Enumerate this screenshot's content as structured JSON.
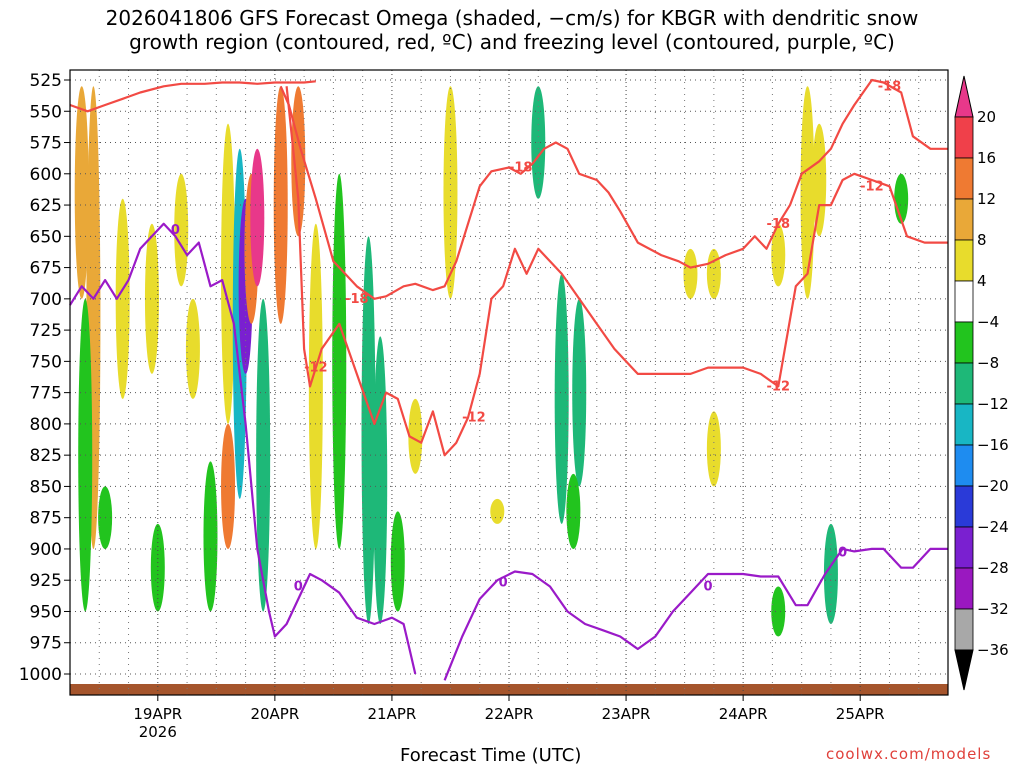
{
  "header": {
    "title": "2026041806 GFS Forecast Omega (shaded, −cm/s) for KBGR with dendritic snow\ngrowth region (contoured, red, ºC) and freezing level (contoured, purple, ºC)"
  },
  "footer": {
    "xaxis_label": "Forecast Time (UTC)",
    "credit": "coolwx.com/models"
  },
  "chart_data": {
    "type": "heatmap",
    "title": "2026041806 GFS Forecast Omega (shaded, −cm/s) for KBGR with dendritic snow growth region (contoured, red, ºC) and freezing level (contoured, purple, ºC)",
    "xlabel": "Forecast Time (UTC)",
    "ylabel": "",
    "y_axis": {
      "inverted": true,
      "range": [
        1000,
        525
      ],
      "ticks": [
        525,
        550,
        575,
        600,
        625,
        650,
        675,
        700,
        725,
        750,
        775,
        800,
        825,
        850,
        875,
        900,
        925,
        950,
        975,
        1000
      ]
    },
    "x_axis": {
      "range_days": [
        18.25,
        25.75
      ],
      "ticks": [
        {
          "day": 19,
          "label": "19APR",
          "sublabel": "2026"
        },
        {
          "day": 20,
          "label": "20APR",
          "sublabel": ""
        },
        {
          "day": 21,
          "label": "21APR",
          "sublabel": ""
        },
        {
          "day": 22,
          "label": "22APR",
          "sublabel": ""
        },
        {
          "day": 23,
          "label": "23APR",
          "sublabel": ""
        },
        {
          "day": 24,
          "label": "24APR",
          "sublabel": ""
        },
        {
          "day": 25,
          "label": "25APR",
          "sublabel": ""
        }
      ]
    },
    "grid": true,
    "colorbar": {
      "labels": [
        "20",
        "16",
        "12",
        "8",
        "4",
        "−4",
        "−8",
        "−12",
        "−16",
        "−20",
        "−24",
        "−28",
        "−32",
        "−36"
      ],
      "colors": [
        "#e8388a",
        "#f0404a",
        "#ef7a32",
        "#e9a838",
        "#e8dc2c",
        "#ffffff",
        "#22c41e",
        "#1eb878",
        "#18b6c4",
        "#1e8cf0",
        "#2a3ad8",
        "#7a20d0",
        "#9a18c0",
        "#a8a8a8",
        "#000000"
      ]
    },
    "omega_shading": [
      {
        "t": 18.35,
        "p1": 530,
        "p2": 700,
        "value": 10
      },
      {
        "t": 18.45,
        "p1": 530,
        "p2": 900,
        "value": 10
      },
      {
        "t": 18.38,
        "p1": 700,
        "p2": 950,
        "value": -6
      },
      {
        "t": 18.55,
        "p1": 850,
        "p2": 900,
        "value": -6
      },
      {
        "t": 18.7,
        "p1": 620,
        "p2": 780,
        "value": 4
      },
      {
        "t": 18.95,
        "p1": 640,
        "p2": 760,
        "value": 4
      },
      {
        "t": 19.0,
        "p1": 880,
        "p2": 950,
        "value": -6
      },
      {
        "t": 19.2,
        "p1": 600,
        "p2": 690,
        "value": 4
      },
      {
        "t": 19.3,
        "p1": 700,
        "p2": 780,
        "value": 4
      },
      {
        "t": 19.45,
        "p1": 830,
        "p2": 950,
        "value": -6
      },
      {
        "t": 19.6,
        "p1": 560,
        "p2": 800,
        "value": 6
      },
      {
        "t": 19.6,
        "p1": 800,
        "p2": 900,
        "value": 12
      },
      {
        "t": 19.7,
        "p1": 580,
        "p2": 860,
        "value": -12
      },
      {
        "t": 19.75,
        "p1": 620,
        "p2": 760,
        "value": -24
      },
      {
        "t": 19.8,
        "p1": 600,
        "p2": 720,
        "value": 12
      },
      {
        "t": 19.85,
        "p1": 580,
        "p2": 690,
        "value": 20
      },
      {
        "t": 19.9,
        "p1": 700,
        "p2": 950,
        "value": -8
      },
      {
        "t": 20.05,
        "p1": 530,
        "p2": 720,
        "value": 12
      },
      {
        "t": 20.2,
        "p1": 530,
        "p2": 650,
        "value": 12
      },
      {
        "t": 20.35,
        "p1": 640,
        "p2": 900,
        "value": 4
      },
      {
        "t": 20.55,
        "p1": 600,
        "p2": 900,
        "value": -6
      },
      {
        "t": 20.8,
        "p1": 650,
        "p2": 960,
        "value": -8
      },
      {
        "t": 20.9,
        "p1": 730,
        "p2": 960,
        "value": -10
      },
      {
        "t": 21.05,
        "p1": 870,
        "p2": 950,
        "value": -6
      },
      {
        "t": 21.2,
        "p1": 780,
        "p2": 840,
        "value": 4
      },
      {
        "t": 21.5,
        "p1": 530,
        "p2": 700,
        "value": 4
      },
      {
        "t": 21.9,
        "p1": 860,
        "p2": 880,
        "value": 4
      },
      {
        "t": 22.25,
        "p1": 530,
        "p2": 620,
        "value": -8
      },
      {
        "t": 22.45,
        "p1": 680,
        "p2": 880,
        "value": -10
      },
      {
        "t": 22.6,
        "p1": 700,
        "p2": 850,
        "value": -8
      },
      {
        "t": 22.55,
        "p1": 840,
        "p2": 900,
        "value": -6
      },
      {
        "t": 23.55,
        "p1": 660,
        "p2": 700,
        "value": 4
      },
      {
        "t": 23.75,
        "p1": 660,
        "p2": 700,
        "value": 4
      },
      {
        "t": 23.75,
        "p1": 790,
        "p2": 850,
        "value": 4
      },
      {
        "t": 24.3,
        "p1": 640,
        "p2": 690,
        "value": 4
      },
      {
        "t": 24.3,
        "p1": 930,
        "p2": 970,
        "value": -6
      },
      {
        "t": 24.55,
        "p1": 530,
        "p2": 700,
        "value": 4
      },
      {
        "t": 24.65,
        "p1": 560,
        "p2": 650,
        "value": 4
      },
      {
        "t": 24.75,
        "p1": 880,
        "p2": 960,
        "value": -8
      },
      {
        "t": 25.35,
        "p1": 600,
        "p2": 640,
        "value": -6
      }
    ],
    "series": [
      {
        "name": "-18",
        "color": "#f24a44",
        "segments": [
          {
            "t": [
              18.25,
              18.4,
              18.55,
              18.7,
              18.85,
              19.05,
              19.2,
              19.4,
              19.55,
              19.7,
              19.85,
              20.0,
              20.1,
              20.25,
              20.35
            ],
            "p": [
              545,
              550,
              545,
              540,
              535,
              530,
              528,
              528,
              527,
              527,
              528,
              527,
              527,
              527,
              526
            ]
          },
          {
            "t": [
              20.05,
              20.12,
              20.22,
              20.35,
              20.5,
              20.7,
              20.85,
              20.95,
              21.1,
              21.2,
              21.35,
              21.45,
              21.55,
              21.65,
              21.75,
              21.85,
              22.0,
              22.1,
              22.2,
              22.3,
              22.4,
              22.5,
              22.6,
              22.75,
              22.85,
              22.95,
              23.1,
              23.3,
              23.45,
              23.55,
              23.7,
              23.85,
              24.0,
              24.1,
              24.2,
              24.3,
              24.4,
              24.5,
              24.65,
              24.75,
              24.85,
              24.95,
              25.1,
              25.2,
              25.35,
              25.45,
              25.6,
              25.75
            ],
            "p": [
              530,
              545,
              580,
              620,
              670,
              690,
              700,
              698,
              690,
              688,
              693,
              690,
              670,
              640,
              610,
              598,
              595,
              600,
              592,
              580,
              575,
              580,
              600,
              605,
              615,
              630,
              655,
              665,
              670,
              675,
              672,
              665,
              660,
              650,
              660,
              640,
              625,
              600,
              590,
              580,
              560,
              545,
              525,
              527,
              535,
              570,
              580,
              580
            ]
          }
        ]
      },
      {
        "name": "-12",
        "color": "#f24a44",
        "segments": [
          {
            "t": [
              20.1,
              20.2,
              20.25,
              20.3,
              20.4,
              20.55,
              20.7,
              20.85,
              20.95,
              21.05,
              21.15,
              21.25,
              21.35,
              21.45,
              21.55,
              21.65,
              21.75,
              21.85,
              21.95,
              22.05,
              22.15,
              22.25,
              22.35,
              22.45,
              22.6,
              22.75,
              22.9,
              23.1,
              23.25,
              23.4,
              23.55,
              23.7,
              23.85,
              24.0,
              24.15,
              24.3,
              24.45,
              24.55,
              24.65,
              24.75,
              24.85,
              24.95,
              25.1,
              25.25,
              25.4,
              25.55,
              25.75
            ],
            "p": [
              530,
              620,
              740,
              770,
              740,
              720,
              760,
              800,
              775,
              780,
              810,
              815,
              790,
              825,
              815,
              795,
              760,
              700,
              690,
              660,
              680,
              660,
              670,
              680,
              700,
              720,
              740,
              760,
              760,
              760,
              760,
              755,
              755,
              755,
              760,
              770,
              690,
              680,
              625,
              625,
              605,
              600,
              605,
              610,
              650,
              655,
              655
            ]
          }
        ]
      },
      {
        "name": "0",
        "color": "#9a1ac8",
        "segments": [
          {
            "t": [
              18.25,
              18.35,
              18.45,
              18.55,
              18.65,
              18.75,
              18.85,
              18.95,
              19.05,
              19.15,
              19.25,
              19.35,
              19.45,
              19.55,
              19.65,
              19.75,
              19.85,
              19.95,
              20.0,
              20.1,
              20.2,
              20.3,
              20.4,
              20.55,
              20.7,
              20.85,
              21.0,
              21.1,
              21.15,
              21.2
            ],
            "p": [
              705,
              690,
              700,
              685,
              700,
              685,
              660,
              650,
              640,
              650,
              665,
              655,
              690,
              685,
              720,
              800,
              900,
              950,
              970,
              960,
              940,
              920,
              925,
              935,
              955,
              960,
              955,
              960,
              980,
              1000
            ]
          },
          {
            "t": [
              21.45,
              21.6,
              21.75,
              21.9,
              22.05,
              22.2,
              22.35,
              22.5,
              22.65,
              22.8,
              22.95,
              23.1,
              23.25,
              23.4,
              23.55,
              23.7,
              23.85,
              24.0,
              24.15,
              24.3,
              24.45,
              24.55,
              24.7,
              24.85,
              24.95,
              25.1,
              25.2,
              25.35,
              25.45,
              25.6,
              25.75
            ],
            "p": [
              1005,
              970,
              940,
              925,
              918,
              920,
              930,
              950,
              960,
              965,
              970,
              980,
              970,
              950,
              935,
              920,
              920,
              920,
              922,
              922,
              945,
              945,
              920,
              900,
              902,
              900,
              900,
              915,
              915,
              900,
              900
            ]
          }
        ]
      }
    ],
    "contour_labels": [
      {
        "text": "-18",
        "t": 20.7,
        "p": 700,
        "color": "#f24a44"
      },
      {
        "text": "-18",
        "t": 22.1,
        "p": 595,
        "color": "#f24a44"
      },
      {
        "text": "-18",
        "t": 24.3,
        "p": 640,
        "color": "#f24a44"
      },
      {
        "text": "-18",
        "t": 25.25,
        "p": 530,
        "color": "#f24a44"
      },
      {
        "text": "-12",
        "t": 20.35,
        "p": 755,
        "color": "#f24a44"
      },
      {
        "text": "-12",
        "t": 21.7,
        "p": 795,
        "color": "#f24a44"
      },
      {
        "text": "-12",
        "t": 24.3,
        "p": 770,
        "color": "#f24a44"
      },
      {
        "text": "-12",
        "t": 25.1,
        "p": 610,
        "color": "#f24a44"
      },
      {
        "text": "0",
        "t": 19.15,
        "p": 645,
        "color": "#9a1ac8"
      },
      {
        "text": "0",
        "t": 20.2,
        "p": 930,
        "color": "#9a1ac8"
      },
      {
        "text": "0",
        "t": 21.95,
        "p": 927,
        "color": "#9a1ac8"
      },
      {
        "text": "0",
        "t": 23.7,
        "p": 930,
        "color": "#9a1ac8"
      },
      {
        "text": "0",
        "t": 24.85,
        "p": 903,
        "color": "#9a1ac8"
      }
    ],
    "terrain_color": "#a5552c"
  }
}
